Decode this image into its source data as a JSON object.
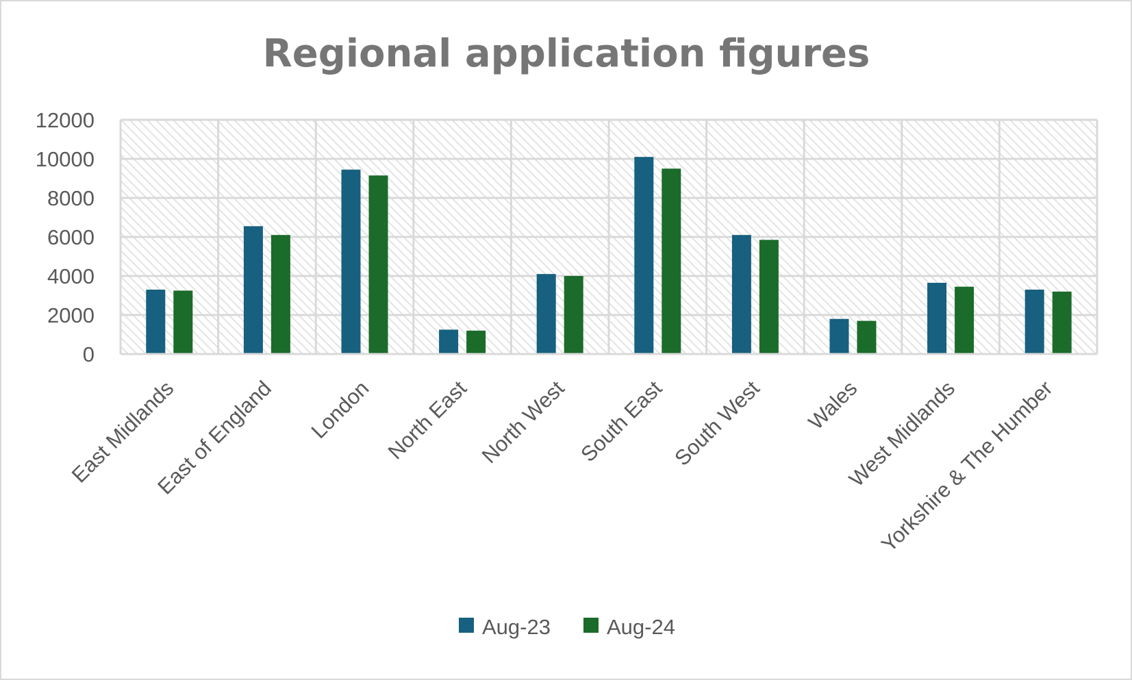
{
  "chart_data": {
    "type": "bar",
    "title": "Regional application figures",
    "xlabel": "",
    "ylabel": "",
    "ylim": [
      0,
      12000
    ],
    "yticks": [
      0,
      2000,
      4000,
      6000,
      8000,
      10000,
      12000
    ],
    "grid": true,
    "legend_position": "bottom",
    "categories": [
      "East Midlands",
      "East of England",
      "London",
      "North East",
      "North West",
      "South East",
      "South West",
      "Wales",
      "West Midlands",
      "Yorkshire & The Humber"
    ],
    "series": [
      {
        "name": "Aug-23",
        "color": "#17607f",
        "values": [
          3300,
          6550,
          9450,
          1250,
          4100,
          10100,
          6100,
          1800,
          3650,
          3300
        ]
      },
      {
        "name": "Aug-24",
        "color": "#1b6b2a",
        "values": [
          3250,
          6100,
          9150,
          1200,
          4000,
          9500,
          5850,
          1700,
          3450,
          3200
        ]
      }
    ]
  }
}
